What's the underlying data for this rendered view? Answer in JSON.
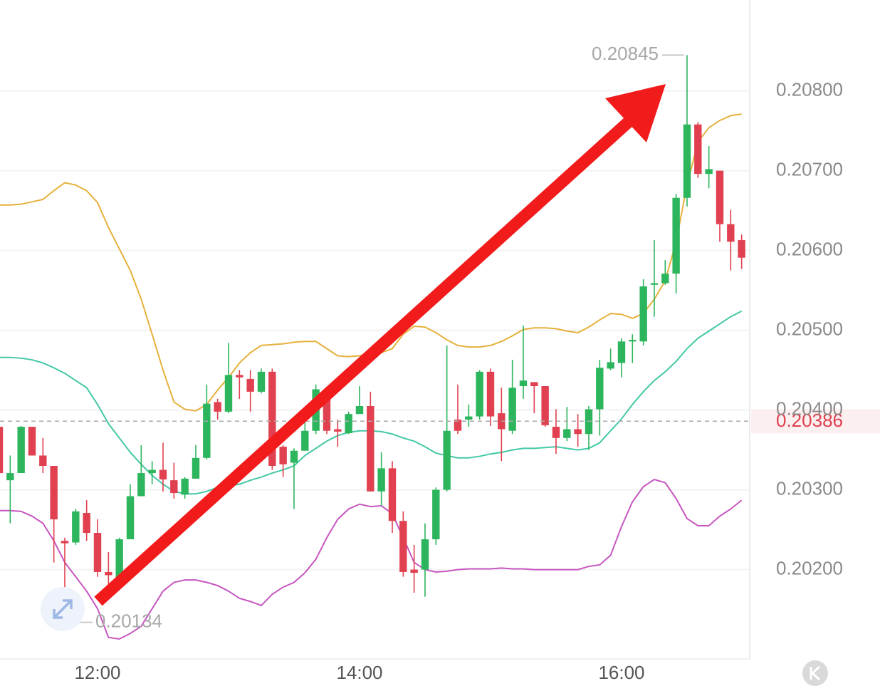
{
  "chart_data": {
    "type": "candlestick",
    "categories": [
      null,
      null,
      null,
      null,
      null,
      null,
      null,
      null,
      null,
      "12:00",
      null,
      null,
      null,
      null,
      null,
      null,
      null,
      null,
      null,
      null,
      null,
      null,
      null,
      null,
      null,
      null,
      null,
      null,
      null,
      null,
      null,
      null,
      null,
      "14:00",
      null,
      null,
      null,
      null,
      null,
      null,
      null,
      null,
      null,
      null,
      null,
      null,
      null,
      null,
      null,
      null,
      null,
      null,
      null,
      null,
      null,
      null,
      null,
      "16:00",
      null,
      null,
      null,
      null,
      null,
      null,
      null,
      null,
      null,
      null,
      null
    ],
    "open": [
      0.20379,
      0.20312,
      0.20321,
      0.20379,
      0.20343,
      0.2033,
      0.20236,
      0.20234,
      0.20271,
      0.20246,
      0.20197,
      0.20187,
      0.20238,
      0.20292,
      0.20321,
      0.20325,
      0.20312,
      0.20294,
      0.20314,
      0.2034,
      0.2041,
      0.20398,
      0.20444,
      0.20439,
      0.20423,
      0.20448,
      0.20354,
      0.20334,
      0.20349,
      0.20374,
      0.20421,
      0.20376,
      0.20371,
      0.20395,
      0.20405,
      0.20298,
      0.20327,
      0.20261,
      0.202,
      0.202,
      0.20238,
      0.203,
      0.20388,
      0.20388,
      0.20392,
      0.20448,
      0.20396,
      0.20374,
      0.2043,
      0.20435,
      0.2043,
      0.20379,
      0.20365,
      0.20376,
      0.2037,
      0.20401,
      0.20452,
      0.20459,
      0.20486,
      0.20486,
      0.20557,
      0.20559,
      0.20571,
      0.20666,
      0.20758,
      0.20696,
      0.207,
      0.20633,
      0.20613
    ],
    "high": [
      0.20383,
      0.20343,
      0.2038,
      0.20379,
      0.20365,
      0.2033,
      0.2024,
      0.20276,
      0.20287,
      0.20263,
      0.20222,
      0.2024,
      0.20307,
      0.20356,
      0.20336,
      0.20359,
      0.20334,
      0.20316,
      0.20356,
      0.20432,
      0.20414,
      0.20484,
      0.2045,
      0.2045,
      0.20452,
      0.20452,
      0.20356,
      0.20352,
      0.20392,
      0.20432,
      0.20428,
      0.20388,
      0.20398,
      0.2043,
      0.20423,
      0.20347,
      0.20336,
      0.20273,
      0.20231,
      0.20258,
      0.20303,
      0.20481,
      0.20432,
      0.20407,
      0.2045,
      0.20452,
      0.20428,
      0.20463,
      0.20506,
      0.20435,
      0.2043,
      0.20401,
      0.20404,
      0.20395,
      0.20405,
      0.20463,
      0.20477,
      0.2049,
      0.20495,
      0.20564,
      0.20613,
      0.20588,
      0.20671,
      0.20845,
      0.20761,
      0.20731,
      0.207,
      0.20651,
      0.2062
    ],
    "low": [
      0.20312,
      0.20258,
      0.20321,
      0.20343,
      0.20321,
      0.20209,
      0.20134,
      0.20231,
      0.20236,
      0.20191,
      0.20182,
      0.20184,
      0.20238,
      0.20292,
      0.20307,
      0.20298,
      0.20289,
      0.20289,
      0.20314,
      0.20338,
      0.20388,
      0.20396,
      0.20414,
      0.20398,
      0.20421,
      0.20325,
      0.20316,
      0.20276,
      0.20349,
      0.2037,
      0.2037,
      0.20354,
      0.2037,
      0.20395,
      0.20298,
      0.2028,
      0.20246,
      0.20191,
      0.20171,
      0.20166,
      0.20231,
      0.20298,
      0.2037,
      0.20379,
      0.20388,
      0.2038,
      0.20336,
      0.2037,
      0.20414,
      0.20396,
      0.20379,
      0.20345,
      0.20361,
      0.20354,
      0.2035,
      0.20368,
      0.2045,
      0.20441,
      0.20459,
      0.20481,
      0.20517,
      0.20557,
      0.20546,
      0.20655,
      0.20691,
      0.20678,
      0.20611,
      0.20575,
      0.20577
    ],
    "close": [
      0.20321,
      0.20321,
      0.20379,
      0.20343,
      0.2033,
      0.20263,
      0.20233,
      0.20273,
      0.20246,
      0.20197,
      0.20193,
      0.20238,
      0.20292,
      0.20321,
      0.20325,
      0.20313,
      0.20296,
      0.20314,
      0.2034,
      0.20408,
      0.20398,
      0.20444,
      0.20441,
      0.20423,
      0.20448,
      0.2033,
      0.20332,
      0.20349,
      0.20374,
      0.20426,
      0.20374,
      0.20373,
      0.20395,
      0.20405,
      0.20298,
      0.20327,
      0.20261,
      0.20197,
      0.20196,
      0.20238,
      0.203,
      0.20374,
      0.20374,
      0.20392,
      0.20448,
      0.20392,
      0.20376,
      0.20428,
      0.20437,
      0.2043,
      0.20381,
      0.20365,
      0.20376,
      0.2037,
      0.20401,
      0.20453,
      0.2046,
      0.20486,
      0.20488,
      0.20555,
      0.20559,
      0.20571,
      0.20666,
      0.20758,
      0.20696,
      0.20702,
      0.20633,
      0.20611,
      0.20591
    ],
    "up_color": "#2db55d",
    "down_color": "#e0404f",
    "bands": {
      "upper": {
        "color": "#e6b13c",
        "values": [
          0.20657,
          0.20657,
          0.20658,
          0.20661,
          0.20664,
          0.20675,
          0.20685,
          0.20682,
          0.20675,
          0.2066,
          0.20629,
          0.20602,
          0.20575,
          0.20539,
          0.20495,
          0.2045,
          0.2041,
          0.20401,
          0.20399,
          0.20407,
          0.20425,
          0.20441,
          0.20459,
          0.20472,
          0.20481,
          0.20482,
          0.20483,
          0.20485,
          0.20486,
          0.20486,
          0.20477,
          0.20468,
          0.20467,
          0.20468,
          0.20471,
          0.20472,
          0.20477,
          0.20495,
          0.20505,
          0.20504,
          0.20497,
          0.20488,
          0.20481,
          0.20479,
          0.20479,
          0.20481,
          0.20486,
          0.20493,
          0.20501,
          0.20503,
          0.20503,
          0.20502,
          0.20499,
          0.20497,
          0.20504,
          0.20513,
          0.20521,
          0.2052,
          0.20515,
          0.20521,
          0.20539,
          0.20562,
          0.20611,
          0.20682,
          0.20736,
          0.20754,
          0.20763,
          0.20769,
          0.20771
        ]
      },
      "middle": {
        "color": "#43c8a6",
        "values": [
          0.20466,
          0.20466,
          0.20465,
          0.20463,
          0.20459,
          0.20453,
          0.20446,
          0.20437,
          0.20428,
          0.20407,
          0.20383,
          0.20365,
          0.20347,
          0.20332,
          0.20318,
          0.20307,
          0.20298,
          0.20295,
          0.20295,
          0.20298,
          0.20303,
          0.20305,
          0.20307,
          0.20312,
          0.20316,
          0.20321,
          0.20325,
          0.2033,
          0.20343,
          0.20352,
          0.20361,
          0.20368,
          0.20372,
          0.20374,
          0.20374,
          0.20373,
          0.2037,
          0.20365,
          0.20361,
          0.20354,
          0.20346,
          0.20343,
          0.2034,
          0.2034,
          0.20342,
          0.20345,
          0.20347,
          0.2035,
          0.20352,
          0.20352,
          0.20353,
          0.20354,
          0.20352,
          0.2035,
          0.20352,
          0.20359,
          0.20374,
          0.20389,
          0.20407,
          0.20423,
          0.20437,
          0.20448,
          0.20461,
          0.20477,
          0.2049,
          0.20499,
          0.20508,
          0.20517,
          0.20524
        ]
      },
      "lower": {
        "color": "#c656c0",
        "values": [
          0.20274,
          0.20274,
          0.20273,
          0.20267,
          0.20258,
          0.20236,
          0.20209,
          0.20191,
          0.20173,
          0.20151,
          0.20115,
          0.20113,
          0.2012,
          0.20129,
          0.20151,
          0.20173,
          0.20184,
          0.20187,
          0.20187,
          0.20184,
          0.2018,
          0.20173,
          0.20164,
          0.2016,
          0.20155,
          0.20169,
          0.20178,
          0.20184,
          0.20196,
          0.20213,
          0.2024,
          0.20263,
          0.20276,
          0.20282,
          0.20279,
          0.2028,
          0.2027,
          0.2024,
          0.20209,
          0.202,
          0.20197,
          0.20198,
          0.202,
          0.20201,
          0.20201,
          0.20201,
          0.20202,
          0.20201,
          0.20201,
          0.202,
          0.202,
          0.202,
          0.202,
          0.202,
          0.20204,
          0.20206,
          0.20218,
          0.20254,
          0.20285,
          0.20304,
          0.20313,
          0.20309,
          0.20289,
          0.20264,
          0.20255,
          0.20255,
          0.20267,
          0.20276,
          0.20287
        ]
      }
    },
    "last_price": 0.20386,
    "ylim": [
      0.20088,
      0.20914
    ],
    "yticks": [
      {
        "value": 0.202,
        "label": "0.20200"
      },
      {
        "value": 0.203,
        "label": "0.20300"
      },
      {
        "value": 0.204,
        "label": "0.20400"
      },
      {
        "value": 0.205,
        "label": "0.20500"
      },
      {
        "value": 0.206,
        "label": "0.20600"
      },
      {
        "value": 0.207,
        "label": "0.20700"
      },
      {
        "value": 0.208,
        "label": "0.20800"
      }
    ],
    "grid": true
  }
}
